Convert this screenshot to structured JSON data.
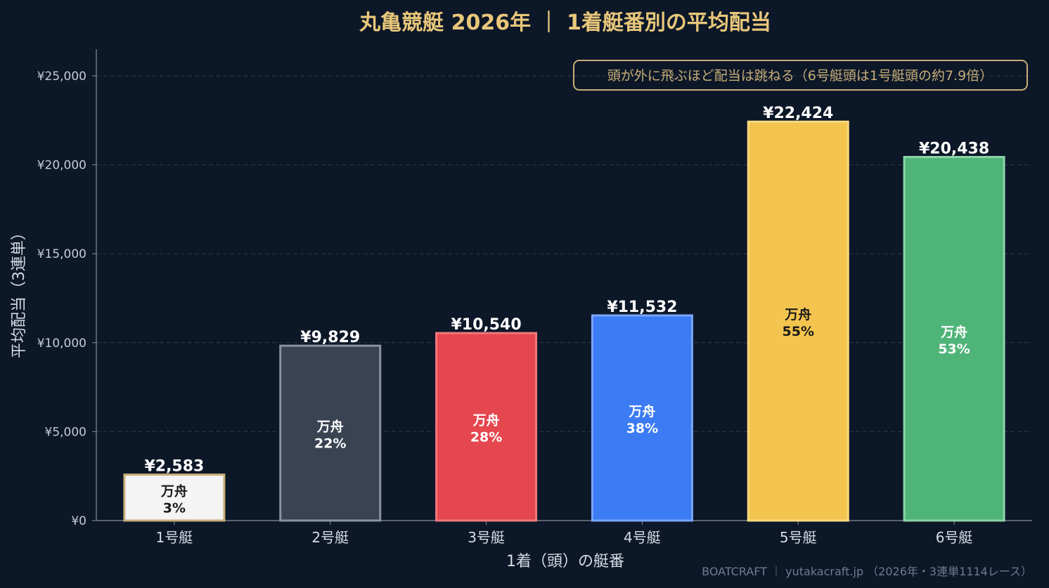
{
  "chart_data": {
    "type": "bar",
    "title": "丸亀競艇 2026年 ｜ 1着艇番別の平均配当",
    "xlabel": "1着（頭）の艇番",
    "ylabel": "平均配当（3連単）",
    "categories": [
      "1号艇",
      "2号艇",
      "3号艇",
      "4号艇",
      "5号艇",
      "6号艇"
    ],
    "values": [
      2583,
      9829,
      10540,
      11532,
      22424,
      20438
    ],
    "value_labels": [
      "¥2,583",
      "¥9,829",
      "¥10,540",
      "¥11,532",
      "¥22,424",
      "¥20,438"
    ],
    "manshu_label": "万舟",
    "manshu_rates": [
      "3%",
      "22%",
      "28%",
      "38%",
      "55%",
      "53%"
    ],
    "ylim": [
      0,
      26500
    ],
    "yticks": [
      0,
      5000,
      10000,
      15000,
      20000,
      25000
    ],
    "ytick_labels": [
      "¥0",
      "¥5,000",
      "¥10,000",
      "¥15,000",
      "¥20,000",
      "¥25,000"
    ],
    "grid": true,
    "bar_colors": [
      "#f4f4f4",
      "#3a4352",
      "#e5474f",
      "#3b7bf3",
      "#f4c54e",
      "#4fb478"
    ],
    "bar_edge_colors": [
      "#c8ae78",
      "#8a93a3",
      "#f0787d",
      "#7aa6fa",
      "#f8d980",
      "#8bd4a8"
    ],
    "inner_text_colors": [
      "#1a1a1a",
      "#ffffff",
      "#ffffff",
      "#ffffff",
      "#1a1a1a",
      "#ffffff"
    ],
    "annotation": "頭が外に飛ぶほど配当は跳ねる（6号艇頭は1号艇頭の約7.9倍）",
    "annotation_placement": "top-right"
  },
  "footer": "BOATCRAFT ｜ yutakacraft.jp （2026年・3連単1114レース）",
  "colors": {
    "background": "#0c1728",
    "title": "#e8c77a",
    "grid": "#2e3b4a",
    "axis": "#8a8f99",
    "annotation_border": "#c8ae78"
  }
}
